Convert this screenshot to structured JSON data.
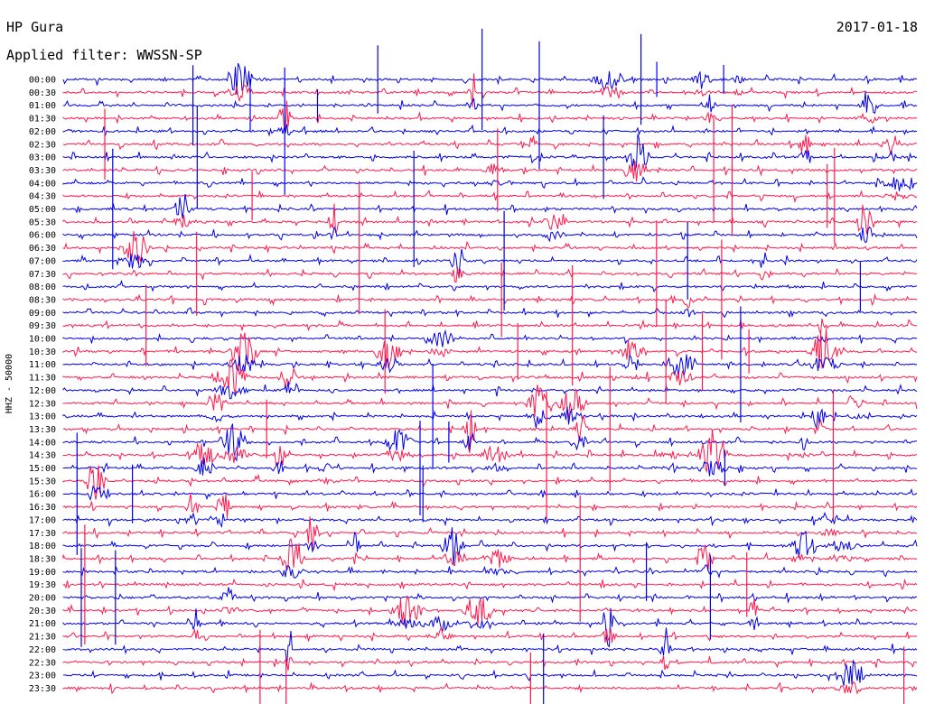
{
  "header": {
    "station": "HP Gura",
    "filter": "Applied filter: WWSSN-SP",
    "date": "2017-01-18"
  },
  "colors": {
    "trace_even": "#0000e6",
    "trace_odd": "#ff1a4d",
    "text": "#000000",
    "background": "#ffffff"
  },
  "chart_data": {
    "type": "line",
    "title": "HP Gura",
    "subtitle": "Applied filter: WWSSN-SP",
    "date": "2017-01-18",
    "ylabel": "HHZ - 50000",
    "xlabel": "",
    "grid": false,
    "legend": "none",
    "series_description": "helicorder — one seismic trace per 30-minute row, alternating blue/red",
    "rows": [
      "00:00",
      "00:30",
      "01:00",
      "01:30",
      "02:00",
      "02:30",
      "03:00",
      "03:30",
      "04:00",
      "04:30",
      "05:00",
      "05:30",
      "06:00",
      "06:30",
      "07:00",
      "07:30",
      "08:00",
      "08:30",
      "09:00",
      "09:30",
      "10:00",
      "10:30",
      "11:00",
      "11:30",
      "12:00",
      "12:30",
      "13:00",
      "13:30",
      "14:00",
      "14:30",
      "15:00",
      "15:30",
      "16:00",
      "16:30",
      "17:00",
      "17:30",
      "18:00",
      "18:30",
      "19:00",
      "19:30",
      "20:00",
      "20:30",
      "21:00",
      "21:30",
      "22:00",
      "22:30",
      "23:00",
      "23:30"
    ]
  }
}
